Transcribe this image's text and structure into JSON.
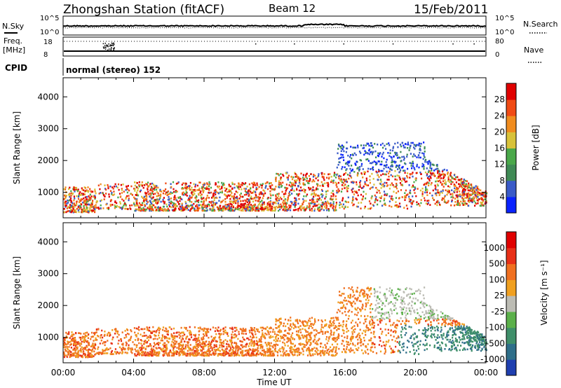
{
  "header": {
    "station": "Zhongshan Station (fitACF)",
    "beam": "Beam 12",
    "date": "15/Feb/2011"
  },
  "noise_panel": {
    "left_label": "N.Sky",
    "right_label": "N.Search",
    "left_ticks": [
      "10^5",
      "10^0"
    ],
    "right_ticks": [
      "10^5",
      "10^0"
    ]
  },
  "freq_panel": {
    "left_label_1": "Freq.",
    "left_label_2": "[MHz]",
    "right_label": "Nave",
    "left_ticks": [
      "18",
      "8"
    ],
    "right_ticks": [
      "80",
      "0"
    ]
  },
  "cpid": {
    "label": "CPID",
    "value": "normal (stereo) 152"
  },
  "chart_data": [
    {
      "type": "heatmap",
      "name": "power",
      "ylabel": "Slant Range [km]",
      "yticks": [
        "1000",
        "2000",
        "3000",
        "4000"
      ],
      "ylim": [
        200,
        4600
      ],
      "xlim": [
        0,
        24
      ],
      "colorbar": {
        "label": "Power [dB]",
        "ticks": [
          "4",
          "8",
          "12",
          "16",
          "20",
          "24",
          "28"
        ],
        "range": [
          0,
          32
        ],
        "colors": [
          "#0a23ff",
          "#3a5bc8",
          "#3f8a55",
          "#4aa84a",
          "#d8c23a",
          "#f08c1e",
          "#f04a14",
          "#e00000"
        ]
      }
    },
    {
      "type": "heatmap",
      "name": "velocity",
      "ylabel": "Slant Range [km]",
      "yticks": [
        "1000",
        "2000",
        "3000",
        "4000"
      ],
      "ylim": [
        200,
        4600
      ],
      "xlim": [
        0,
        24
      ],
      "colorbar": {
        "label": "Velocity [m s⁻¹]",
        "ticks": [
          "1000",
          "500",
          "100",
          "25",
          "-25",
          "-100",
          "-500",
          "-1000"
        ],
        "colors": [
          "#1f3fb0",
          "#2f6f8a",
          "#3f8f6a",
          "#5bb04a",
          "#bcbcb4",
          "#f0a020",
          "#f07020",
          "#e83018",
          "#e00000"
        ]
      },
      "xlabel": "Time UT",
      "xticks": [
        "00:00",
        "04:00",
        "08:00",
        "12:00",
        "16:00",
        "20:00",
        "00:00"
      ]
    }
  ],
  "colors": {
    "axes": "#000000",
    "background": "#ffffff"
  }
}
